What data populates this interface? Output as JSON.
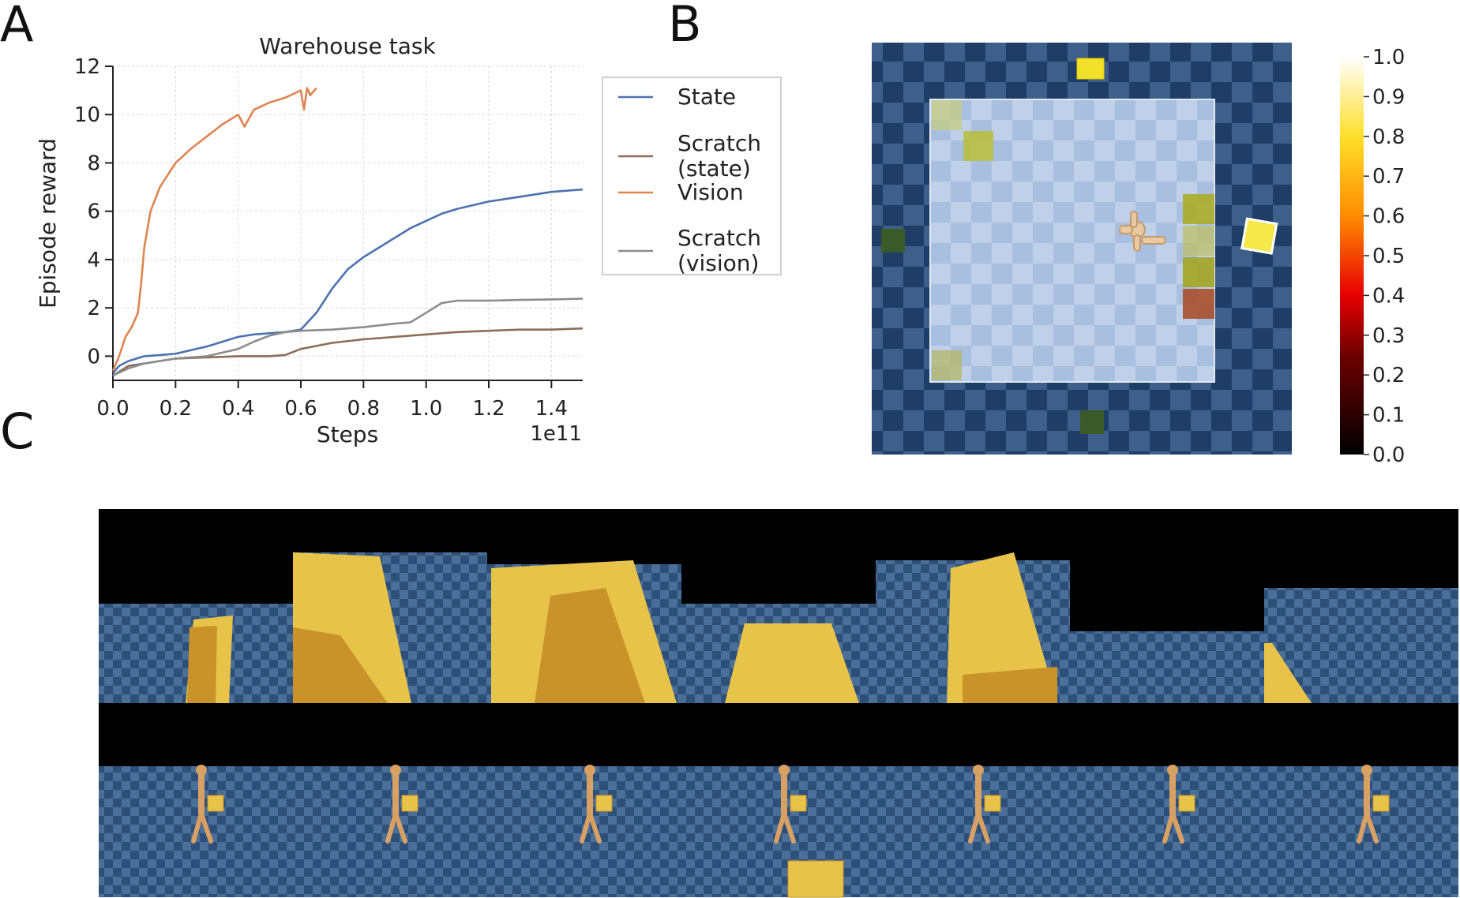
{
  "panels": {
    "a": "A",
    "b": "B",
    "c": "C"
  },
  "chart_data": {
    "type": "line",
    "title": "Warehouse task",
    "xlabel": "Steps",
    "ylabel": "Episode reward",
    "x_offset_text": "1e11",
    "xlim": [
      0.0,
      1.5
    ],
    "ylim": [
      -1,
      12
    ],
    "xticks": [
      "0.0",
      "0.2",
      "0.4",
      "0.6",
      "0.8",
      "1.0",
      "1.2",
      "1.4"
    ],
    "yticks": [
      "0",
      "2",
      "4",
      "6",
      "8",
      "10",
      "12"
    ],
    "grid": true,
    "legend_position": "right",
    "series": [
      {
        "name": "State",
        "color": "#4c72b0",
        "x": [
          0.0,
          0.02,
          0.05,
          0.1,
          0.15,
          0.2,
          0.3,
          0.4,
          0.45,
          0.5,
          0.55,
          0.6,
          0.65,
          0.7,
          0.75,
          0.8,
          0.85,
          0.9,
          0.95,
          1.0,
          1.05,
          1.1,
          1.2,
          1.3,
          1.4,
          1.5
        ],
        "y": [
          -0.7,
          -0.4,
          -0.2,
          0.0,
          0.05,
          0.1,
          0.4,
          0.8,
          0.9,
          0.95,
          1.0,
          1.1,
          1.8,
          2.8,
          3.6,
          4.1,
          4.5,
          4.9,
          5.3,
          5.6,
          5.9,
          6.1,
          6.4,
          6.6,
          6.8,
          6.9
        ]
      },
      {
        "name": "Scratch\n(state)",
        "color": "#8c6d5a",
        "x": [
          0.0,
          0.05,
          0.1,
          0.2,
          0.3,
          0.4,
          0.5,
          0.55,
          0.6,
          0.7,
          0.8,
          0.9,
          1.0,
          1.1,
          1.2,
          1.3,
          1.4,
          1.5
        ],
        "y": [
          -0.8,
          -0.4,
          -0.3,
          -0.1,
          -0.05,
          0.0,
          0.0,
          0.05,
          0.3,
          0.55,
          0.7,
          0.8,
          0.9,
          1.0,
          1.05,
          1.1,
          1.1,
          1.15
        ]
      },
      {
        "name": "Vision",
        "color": "#dd8452",
        "x": [
          0.0,
          0.02,
          0.04,
          0.06,
          0.08,
          0.09,
          0.1,
          0.12,
          0.15,
          0.18,
          0.2,
          0.25,
          0.3,
          0.35,
          0.4,
          0.42,
          0.45,
          0.5,
          0.55,
          0.6,
          0.61,
          0.62,
          0.63,
          0.65
        ],
        "y": [
          -0.6,
          0.0,
          0.8,
          1.2,
          1.8,
          3.0,
          4.5,
          6.0,
          7.0,
          7.6,
          8.0,
          8.6,
          9.1,
          9.6,
          10.0,
          9.5,
          10.2,
          10.5,
          10.7,
          11.0,
          10.2,
          11.1,
          10.8,
          11.1
        ]
      },
      {
        "name": "Scratch\n(vision)",
        "color": "#8c8c8c",
        "x": [
          0.0,
          0.05,
          0.1,
          0.2,
          0.3,
          0.4,
          0.45,
          0.5,
          0.55,
          0.6,
          0.7,
          0.8,
          0.9,
          0.95,
          1.0,
          1.05,
          1.1,
          1.2,
          1.3,
          1.4,
          1.5
        ],
        "y": [
          -0.8,
          -0.5,
          -0.3,
          -0.1,
          0.0,
          0.3,
          0.6,
          0.85,
          1.0,
          1.05,
          1.1,
          1.2,
          1.35,
          1.4,
          1.8,
          2.2,
          2.3,
          2.3,
          2.33,
          2.35,
          2.38
        ]
      }
    ]
  },
  "heatmap": {
    "colorbar_ticks": [
      "1.0",
      "0.9",
      "0.8",
      "0.7",
      "0.6",
      "0.5",
      "0.4",
      "0.3",
      "0.2",
      "0.1",
      "0.0"
    ],
    "colors": {
      "floor_dark": "#1f3d66",
      "floor_light": "#3e5f8a",
      "zone": "#c8d6ec",
      "box": "#f2e12a",
      "target": "#3a5a2a"
    }
  },
  "frames": {
    "count": 7,
    "colors": {
      "box": "#e8c34a",
      "box_shadow": "#c9932a",
      "sky": "#000000",
      "floor": "#2e4f78",
      "floor_alt": "#4a6f99",
      "agent": "#d9a063"
    }
  }
}
